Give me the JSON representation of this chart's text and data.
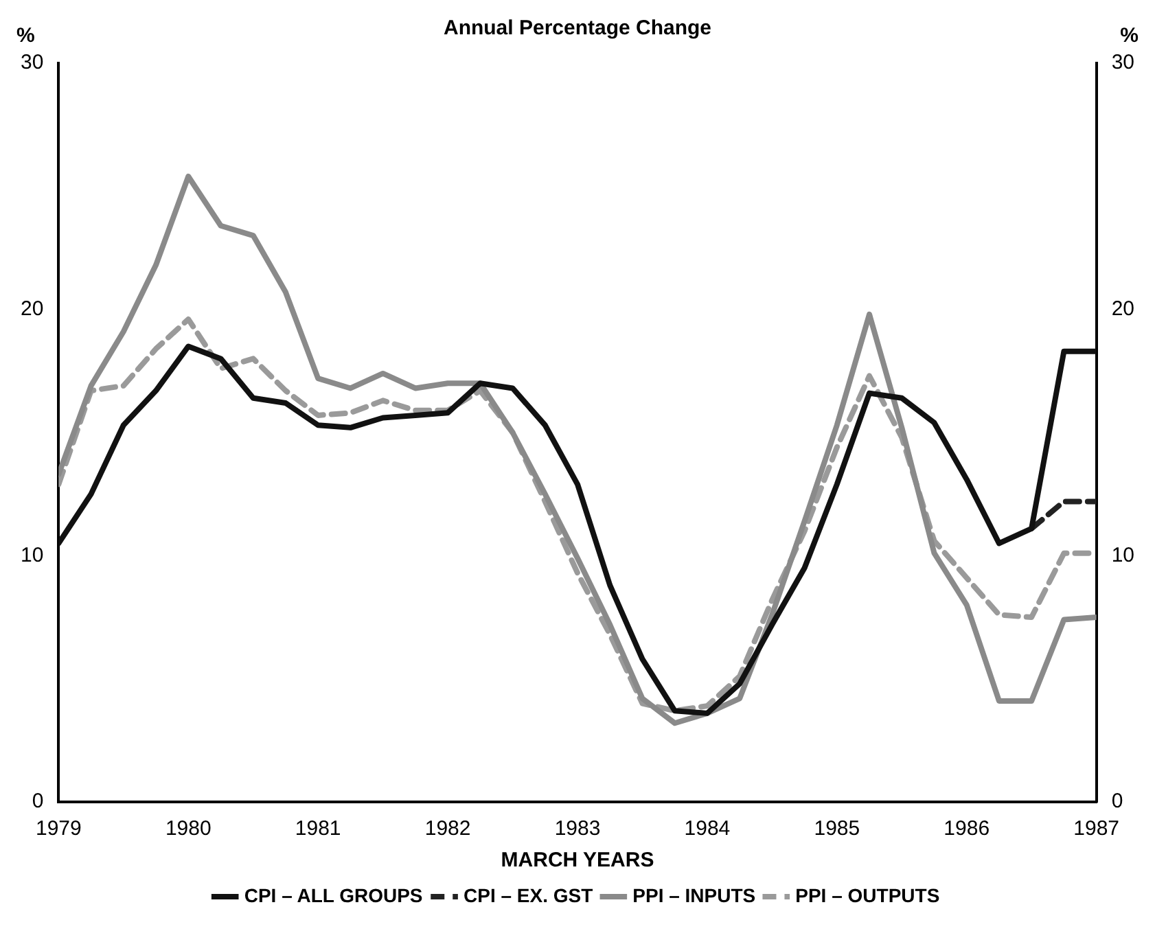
{
  "chart_data": {
    "type": "line",
    "title": "Annual Percentage Change",
    "xlabel": "MARCH YEARS",
    "ylabel": "%",
    "y2label": "%",
    "x": [
      1979,
      1979.25,
      1979.5,
      1979.75,
      1980,
      1980.25,
      1980.5,
      1980.75,
      1981,
      1981.25,
      1981.5,
      1981.75,
      1982,
      1982.25,
      1982.5,
      1982.75,
      1983,
      1983.25,
      1983.5,
      1983.75,
      1984,
      1984.25,
      1984.5,
      1984.75,
      1985,
      1985.25,
      1985.5,
      1985.75,
      1986,
      1986.25,
      1986.5,
      1986.75,
      1987
    ],
    "series": [
      {
        "name": "CPI – ALL GROUPS",
        "color": "#111111",
        "line_style": "solid",
        "values": [
          10.5,
          12.5,
          15.3,
          16.7,
          18.5,
          18.0,
          16.4,
          16.2,
          15.3,
          15.2,
          15.6,
          15.7,
          15.8,
          17.0,
          16.8,
          15.3,
          12.9,
          8.8,
          5.8,
          3.7,
          3.6,
          4.8,
          7.2,
          9.5,
          12.9,
          16.6,
          16.4,
          15.4,
          13.1,
          10.5,
          11.1,
          18.3,
          18.3
        ]
      },
      {
        "name": "CPI – EX. GST",
        "color": "#222222",
        "line_style": "dashed",
        "values": [
          null,
          null,
          null,
          null,
          null,
          null,
          null,
          null,
          null,
          null,
          null,
          null,
          null,
          null,
          null,
          null,
          null,
          null,
          null,
          null,
          null,
          null,
          null,
          null,
          null,
          null,
          null,
          null,
          null,
          null,
          11.1,
          12.2,
          12.2
        ]
      },
      {
        "name": "PPI – INPUTS",
        "color": "#8a8a8a",
        "line_style": "solid",
        "values": [
          13.3,
          16.9,
          19.1,
          21.8,
          25.4,
          23.4,
          23.0,
          20.7,
          17.2,
          16.8,
          17.4,
          16.8,
          17.0,
          17.0,
          15.0,
          12.5,
          9.9,
          7.2,
          4.2,
          3.2,
          3.6,
          4.2,
          7.6,
          11.4,
          15.3,
          19.8,
          15.2,
          10.1,
          8.0,
          4.1,
          4.1,
          7.4,
          7.5
        ]
      },
      {
        "name": "PPI – OUTPUTS",
        "color": "#9a9a9a",
        "line_style": "dashed",
        "values": [
          12.9,
          16.7,
          16.9,
          18.4,
          19.6,
          17.6,
          18.0,
          16.7,
          15.7,
          15.8,
          16.3,
          15.9,
          15.9,
          16.7,
          15.0,
          12.2,
          9.3,
          6.8,
          4.0,
          3.7,
          3.9,
          5.1,
          8.2,
          11.0,
          14.4,
          17.3,
          14.8,
          10.6,
          9.1,
          7.6,
          7.5,
          10.1,
          10.1
        ]
      }
    ],
    "xlim": [
      1979,
      1987
    ],
    "xticks": [
      1979,
      1980,
      1981,
      1982,
      1983,
      1984,
      1985,
      1986,
      1987
    ],
    "ylim": [
      0,
      30
    ],
    "yticks": [
      0,
      10,
      20,
      30
    ],
    "y2lim": [
      0,
      30
    ],
    "y2ticks": [
      0,
      10,
      20,
      30
    ],
    "legend": "bottom",
    "grid": false,
    "marker": "none"
  }
}
